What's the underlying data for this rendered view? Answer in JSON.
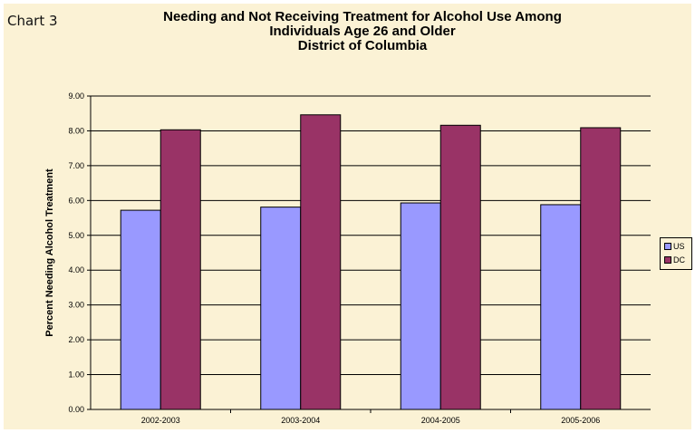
{
  "chart_label": "Chart 3",
  "chart_data": {
    "type": "bar",
    "title_lines": [
      "Needing and Not Receiving Treatment for Alcohol Use Among",
      "Individuals Age 26 and Older",
      "District of Columbia"
    ],
    "xlabel": "",
    "ylabel": "Percent Needing Alcohol Treatment",
    "categories": [
      "2002-2003",
      "2003-2004",
      "2004-2005",
      "2005-2006"
    ],
    "series": [
      {
        "name": "US",
        "color": "#9999ff",
        "values": [
          5.72,
          5.81,
          5.93,
          5.88
        ]
      },
      {
        "name": "DC",
        "color": "#993366",
        "values": [
          8.03,
          8.46,
          8.16,
          8.09
        ]
      }
    ],
    "ylim": [
      0,
      9
    ],
    "yticks": [
      "0.00",
      "1.00",
      "2.00",
      "3.00",
      "4.00",
      "5.00",
      "6.00",
      "7.00",
      "8.00",
      "9.00"
    ],
    "grid": true,
    "legend_position": "right"
  }
}
